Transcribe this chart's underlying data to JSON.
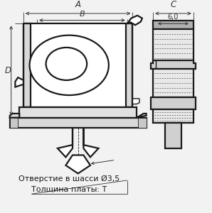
{
  "bg_color": "#f2f2f2",
  "line_color": "#1a1a1a",
  "text_color": "#1a1a1a",
  "dim_color": "#333333",
  "label_A": "A",
  "label_B": "B",
  "label_C": "C",
  "label_D": "D",
  "label_60": "6,0",
  "text1": "Отверстие в шасси Ø3,5",
  "text2": "Толщина платы: T"
}
